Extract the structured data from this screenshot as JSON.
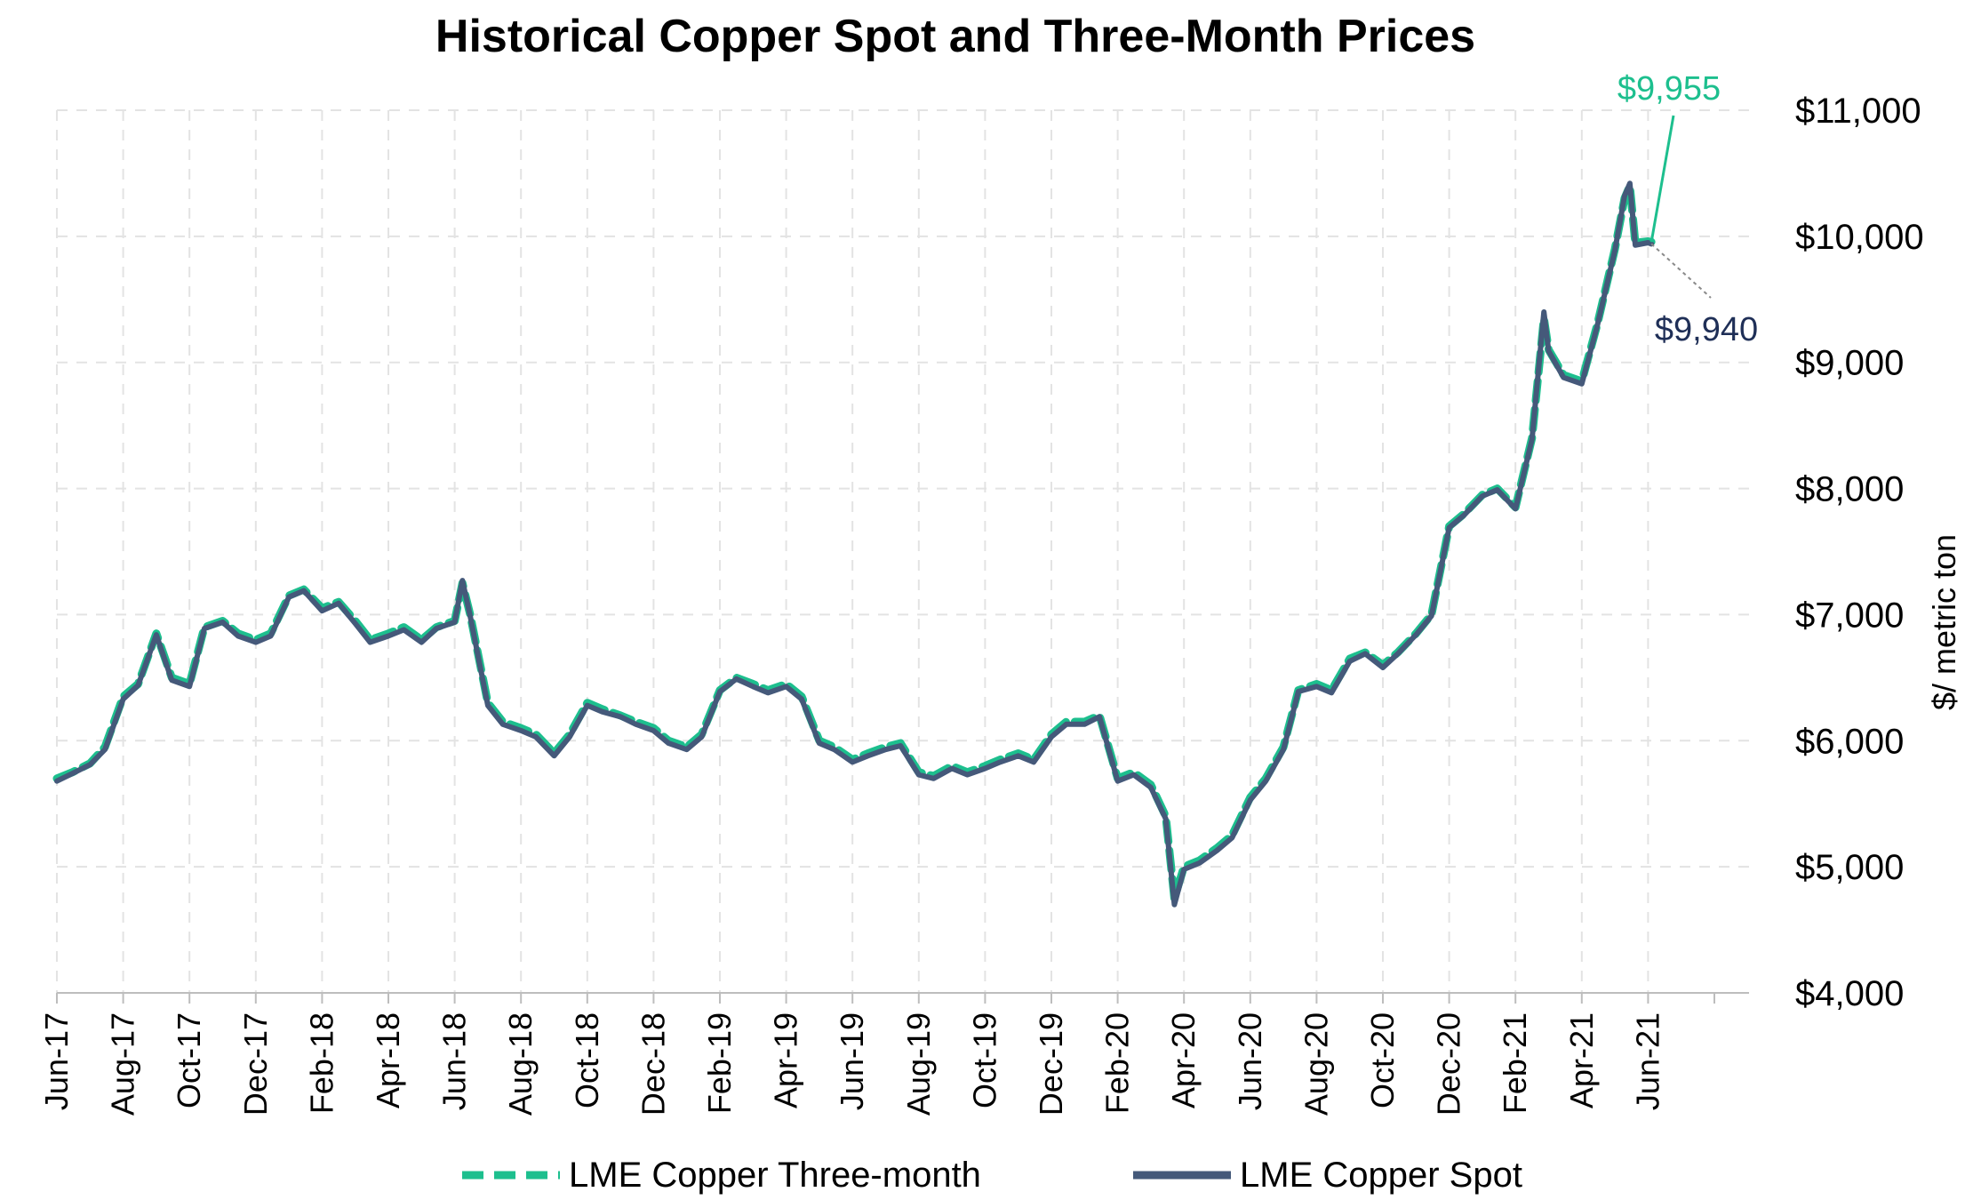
{
  "chart_data": {
    "type": "line",
    "title": "Historical Copper Spot and Three-Month Prices",
    "ylabel": "$/ metric ton",
    "ylim": [
      4000,
      11000
    ],
    "y_ticks": [
      4000,
      5000,
      6000,
      7000,
      8000,
      9000,
      10000,
      11000
    ],
    "y_tick_labels": [
      "$4,000",
      "$5,000",
      "$6,000",
      "$7,000",
      "$8,000",
      "$9,000",
      "$10,000",
      "$11,000"
    ],
    "y_axis_side": "right",
    "x_tick_labels": [
      "Jun-17",
      "Aug-17",
      "Oct-17",
      "Dec-17",
      "Feb-18",
      "Apr-18",
      "Jun-18",
      "Aug-18",
      "Oct-18",
      "Dec-18",
      "Feb-19",
      "Apr-19",
      "Jun-19",
      "Aug-19",
      "Oct-19",
      "Dec-19",
      "Feb-20",
      "Apr-20",
      "Jun-20",
      "Aug-20",
      "Oct-20",
      "Dec-20",
      "Feb-21",
      "Apr-21",
      "Jun-21"
    ],
    "grid": true,
    "legend_position": "bottom",
    "x": [
      "2017-06-01",
      "2017-06-15",
      "2017-07-01",
      "2017-07-15",
      "2017-08-01",
      "2017-08-15",
      "2017-09-01",
      "2017-09-15",
      "2017-10-01",
      "2017-10-15",
      "2017-11-01",
      "2017-11-15",
      "2017-12-01",
      "2017-12-15",
      "2018-01-01",
      "2018-01-15",
      "2018-02-01",
      "2018-02-15",
      "2018-03-01",
      "2018-03-15",
      "2018-04-01",
      "2018-04-15",
      "2018-05-01",
      "2018-05-15",
      "2018-06-01",
      "2018-06-08",
      "2018-06-15",
      "2018-07-01",
      "2018-07-15",
      "2018-08-01",
      "2018-08-15",
      "2018-09-01",
      "2018-09-15",
      "2018-10-01",
      "2018-10-15",
      "2018-11-01",
      "2018-11-15",
      "2018-12-01",
      "2018-12-15",
      "2019-01-01",
      "2019-01-15",
      "2019-02-01",
      "2019-02-15",
      "2019-03-01",
      "2019-03-15",
      "2019-04-01",
      "2019-04-15",
      "2019-05-01",
      "2019-05-15",
      "2019-06-01",
      "2019-06-15",
      "2019-07-01",
      "2019-07-15",
      "2019-08-01",
      "2019-08-15",
      "2019-09-01",
      "2019-09-15",
      "2019-10-01",
      "2019-10-15",
      "2019-11-01",
      "2019-11-15",
      "2019-12-01",
      "2019-12-15",
      "2020-01-01",
      "2020-01-15",
      "2020-02-01",
      "2020-02-15",
      "2020-03-01",
      "2020-03-15",
      "2020-03-23",
      "2020-04-01",
      "2020-04-15",
      "2020-05-01",
      "2020-05-15",
      "2020-06-01",
      "2020-06-15",
      "2020-07-01",
      "2020-07-15",
      "2020-08-01",
      "2020-08-15",
      "2020-09-01",
      "2020-09-15",
      "2020-10-01",
      "2020-10-15",
      "2020-11-01",
      "2020-11-15",
      "2020-12-01",
      "2020-12-15",
      "2021-01-01",
      "2021-01-15",
      "2021-02-01",
      "2021-02-15",
      "2021-02-25",
      "2021-03-01",
      "2021-03-15",
      "2021-04-01",
      "2021-04-15",
      "2021-05-01",
      "2021-05-10",
      "2021-05-15",
      "2021-05-20",
      "2021-06-01",
      "2021-06-04"
    ],
    "series": [
      {
        "name": "LME Copper Three-month",
        "color": "#1dbf8e",
        "style": "dashed",
        "values": [
          5700,
          5750,
          5820,
          5950,
          6350,
          6450,
          6850,
          6500,
          6450,
          6900,
          6950,
          6850,
          6800,
          6850,
          7150,
          7200,
          7050,
          7100,
          6950,
          6800,
          6850,
          6900,
          6800,
          6900,
          6950,
          7250,
          7000,
          6300,
          6150,
          6100,
          6050,
          5900,
          6050,
          6300,
          6250,
          6200,
          6150,
          6100,
          6000,
          5950,
          6050,
          6400,
          6500,
          6450,
          6400,
          6450,
          6350,
          6000,
          5950,
          5850,
          5900,
          5950,
          5980,
          5750,
          5720,
          5800,
          5750,
          5800,
          5850,
          5900,
          5850,
          6050,
          6150,
          6150,
          6200,
          5700,
          5750,
          5650,
          5400,
          4750,
          5000,
          5050,
          5150,
          5250,
          5550,
          5700,
          5950,
          6400,
          6450,
          6400,
          6650,
          6700,
          6600,
          6700,
          6850,
          7000,
          7700,
          7800,
          7950,
          8000,
          7850,
          8400,
          9350,
          9100,
          8900,
          8850,
          9300,
          9900,
          10300,
          10400,
          9950,
          9960,
          9955
        ]
      },
      {
        "name": "LME Copper Spot",
        "color": "#45597a",
        "style": "solid",
        "values": [
          5680,
          5740,
          5810,
          5930,
          6330,
          6440,
          6840,
          6480,
          6430,
          6890,
          6940,
          6830,
          6780,
          6830,
          7140,
          7190,
          7030,
          7090,
          6930,
          6780,
          6830,
          6880,
          6780,
          6890,
          6940,
          7270,
          6990,
          6280,
          6130,
          6080,
          6030,
          5880,
          6030,
          6280,
          6230,
          6190,
          6130,
          6080,
          5980,
          5930,
          6030,
          6390,
          6490,
          6430,
          6380,
          6430,
          6330,
          5980,
          5930,
          5830,
          5880,
          5930,
          5960,
          5730,
          5700,
          5780,
          5730,
          5780,
          5830,
          5880,
          5830,
          6030,
          6130,
          6130,
          6190,
          5680,
          5730,
          5630,
          5380,
          4700,
          4980,
          5030,
          5130,
          5230,
          5530,
          5680,
          5930,
          6390,
          6430,
          6380,
          6630,
          6690,
          6580,
          6690,
          6840,
          6990,
          7690,
          7790,
          7940,
          7990,
          7840,
          8390,
          9400,
          9090,
          8880,
          8830,
          9290,
          9890,
          10320,
          10420,
          9930,
          9950,
          9940
        ]
      }
    ],
    "annotations": [
      {
        "text": "$9,955",
        "color": "#1dbf8e",
        "series": "LME Copper Three-month"
      },
      {
        "text": "$9,940",
        "color": "#1f2f57",
        "series": "LME Copper Spot"
      }
    ]
  }
}
